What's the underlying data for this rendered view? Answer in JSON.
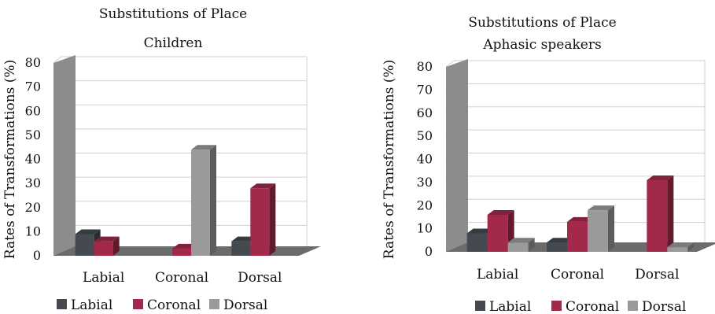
{
  "colors": {
    "Labial": "#444a4f",
    "Coronal": "#a3294a",
    "Dorsal": "#9a9a9a",
    "floor": "#6b6b6b",
    "wall": "#8c8c8c"
  },
  "chart_data": [
    {
      "type": "bar",
      "title": "Substitutions of Place",
      "subtitle": "Children",
      "ylabel": "Rates of Transformations (%)",
      "ylim": [
        0,
        80
      ],
      "yticks": [
        "0",
        "10",
        "20",
        "30",
        "40",
        "50",
        "60",
        "70",
        "80"
      ],
      "grid": true,
      "legend_position": "bottom",
      "categories": [
        "Labial",
        "Coronal",
        "Dorsal"
      ],
      "series": [
        {
          "name": "Labial",
          "values": [
            9,
            0,
            6
          ]
        },
        {
          "name": "Coronal",
          "values": [
            6,
            3,
            28
          ]
        },
        {
          "name": "Dorsal",
          "values": [
            0,
            44,
            0
          ]
        }
      ]
    },
    {
      "type": "bar",
      "title": "Substitutions of Place",
      "subtitle": "Aphasic speakers",
      "ylabel": "Rates of Transformations (%)",
      "ylim": [
        0,
        80
      ],
      "yticks": [
        "0",
        "10",
        "20",
        "30",
        "40",
        "50",
        "60",
        "70",
        "80"
      ],
      "grid": true,
      "legend_position": "bottom",
      "categories": [
        "Labial",
        "Coronal",
        "Dorsal"
      ],
      "series": [
        {
          "name": "Labial",
          "values": [
            8,
            4,
            0
          ]
        },
        {
          "name": "Coronal",
          "values": [
            16,
            13,
            31
          ]
        },
        {
          "name": "Dorsal",
          "values": [
            4,
            18,
            2
          ]
        }
      ]
    }
  ]
}
